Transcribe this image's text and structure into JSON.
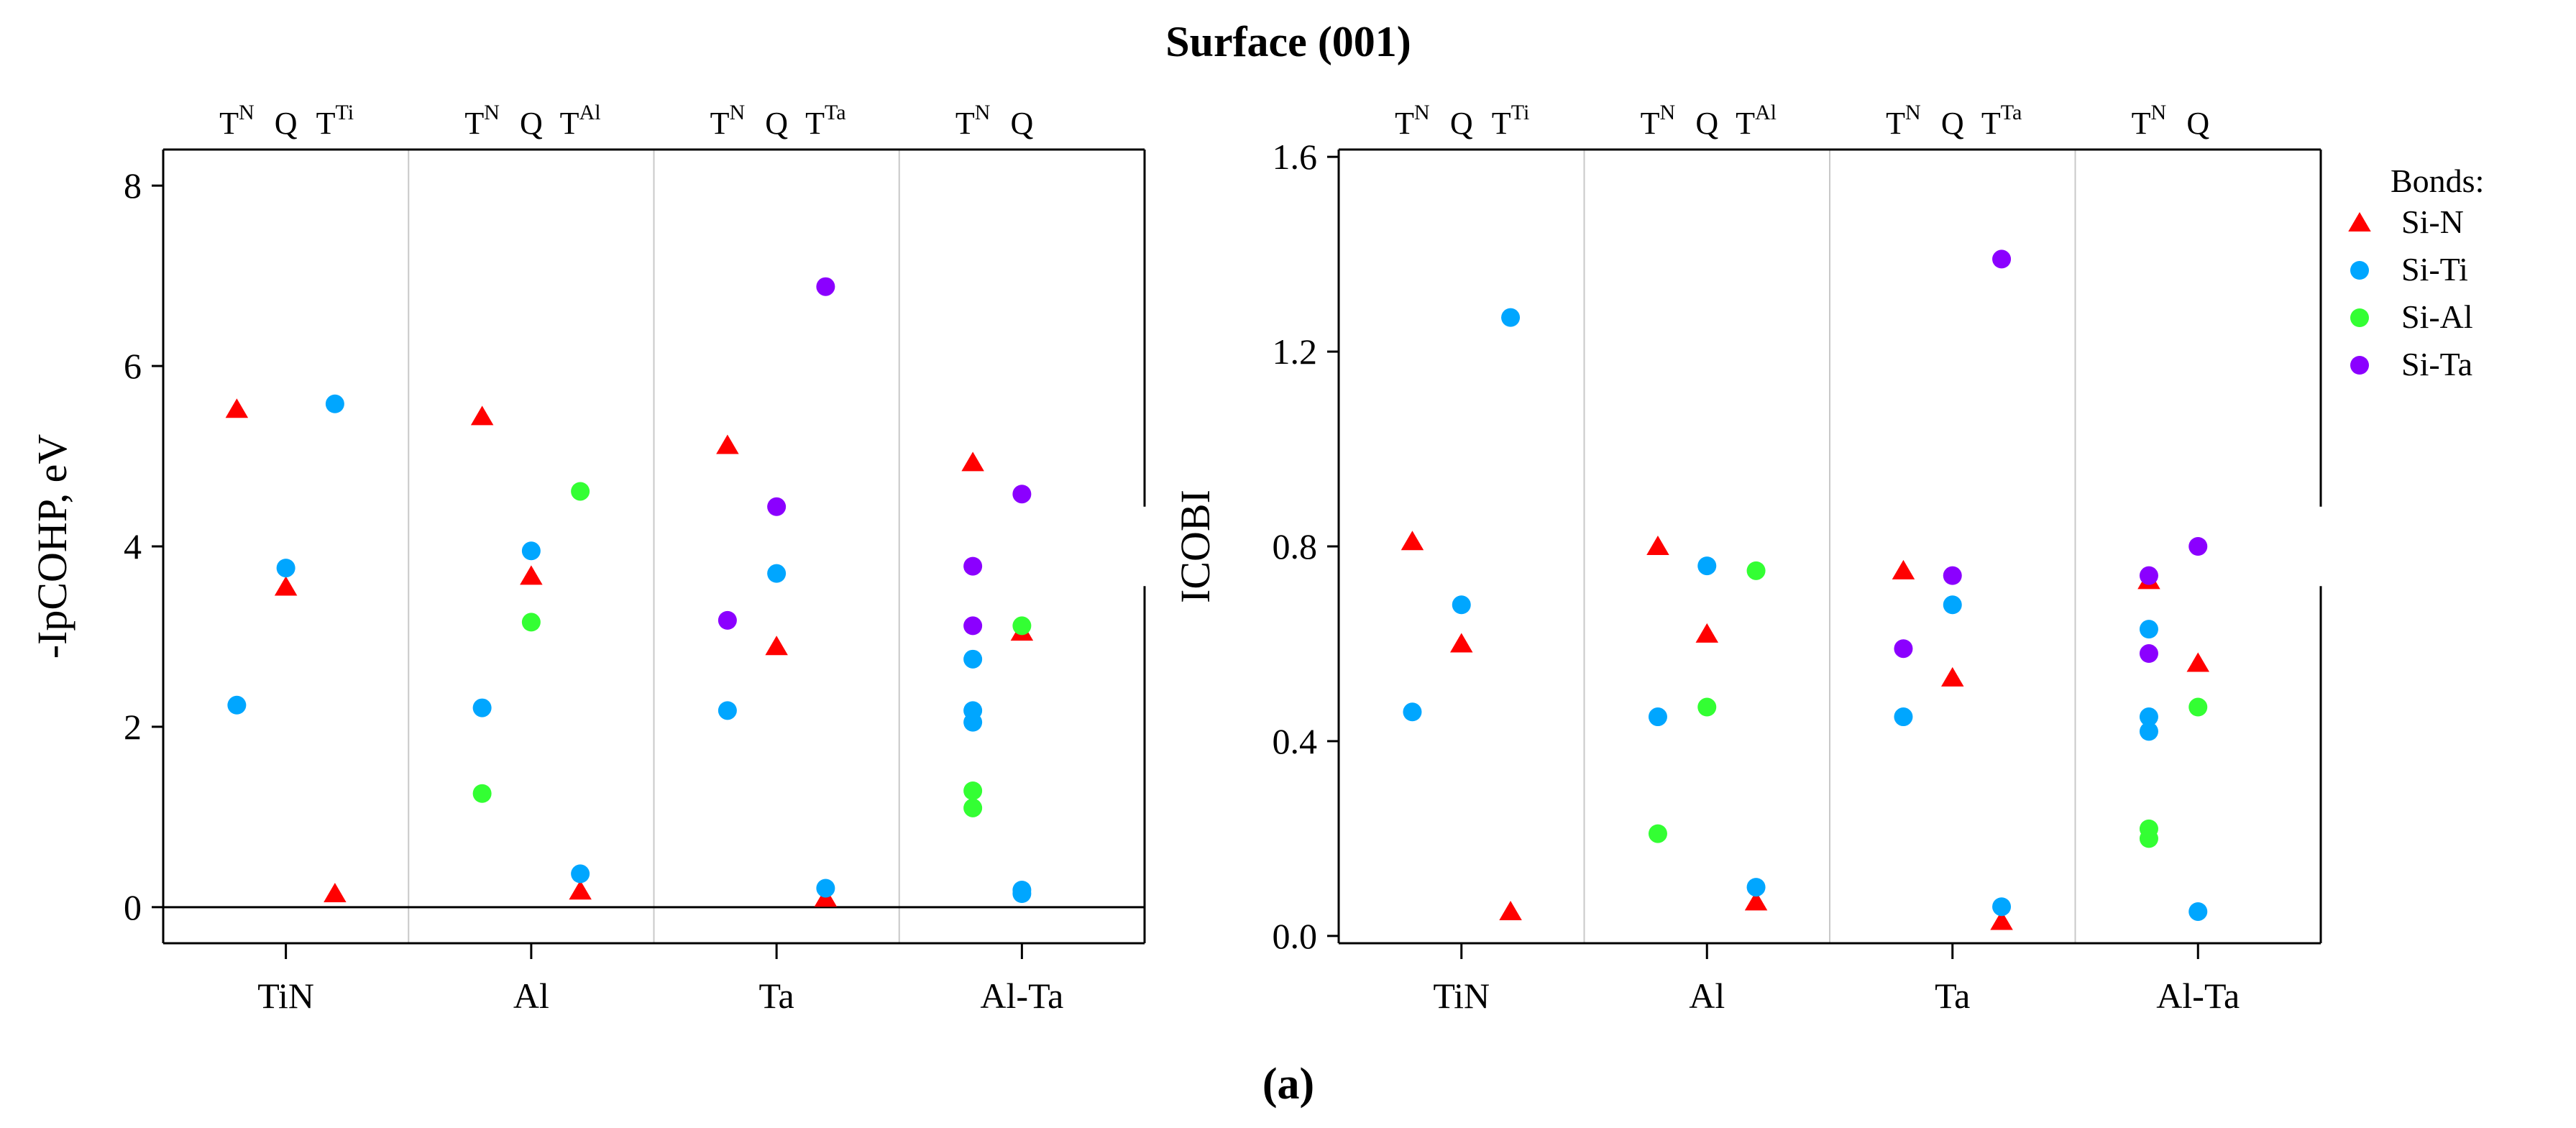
{
  "figure": {
    "title": "Surface (001)",
    "caption_label": "(a)"
  },
  "legend": {
    "title": "Bonds:",
    "placement": "right",
    "entries": [
      {
        "name": "Si-N",
        "marker": "triangle",
        "color": "#ff0000"
      },
      {
        "name": "Si-Ti",
        "marker": "circle",
        "color": "#00a6ff"
      },
      {
        "name": "Si-Al",
        "marker": "circle",
        "color": "#33ff33"
      },
      {
        "name": "Si-Ta",
        "marker": "circle",
        "color": "#8b00ff"
      }
    ]
  },
  "chart_data": [
    {
      "type": "scatter",
      "title": "",
      "ylabel": "-IpCOHP, eV",
      "xlabel": "",
      "ylim": [
        -0.4,
        8.4
      ],
      "yticks": [
        0,
        2,
        4,
        6,
        8
      ],
      "zero_line": true,
      "grid": false,
      "categories": [
        "TiN",
        "Al",
        "Ta",
        "Al-Ta"
      ],
      "top_labels": [
        [
          {
            "base": "T",
            "sup": "N"
          },
          {
            "base": "Q",
            "sup": ""
          },
          {
            "base": "T",
            "sup": "Ti"
          }
        ],
        [
          {
            "base": "T",
            "sup": "N"
          },
          {
            "base": "Q",
            "sup": ""
          },
          {
            "base": "T",
            "sup": "Al"
          }
        ],
        [
          {
            "base": "T",
            "sup": "N"
          },
          {
            "base": "Q",
            "sup": ""
          },
          {
            "base": "T",
            "sup": "Ta"
          }
        ],
        [
          {
            "base": "T",
            "sup": "N"
          },
          {
            "base": "Q",
            "sup": ""
          }
        ]
      ],
      "series": [
        {
          "name": "Si-N",
          "points": [
            {
              "group": 0,
              "pos": 0,
              "y": 5.52
            },
            {
              "group": 0,
              "pos": 1,
              "y": 3.55
            },
            {
              "group": 0,
              "pos": 2,
              "y": 0.15
            },
            {
              "group": 1,
              "pos": 0,
              "y": 5.44
            },
            {
              "group": 1,
              "pos": 1,
              "y": 3.67
            },
            {
              "group": 1,
              "pos": 2,
              "y": 0.18
            },
            {
              "group": 2,
              "pos": 0,
              "y": 5.12
            },
            {
              "group": 2,
              "pos": 1,
              "y": 2.89
            },
            {
              "group": 2,
              "pos": 2,
              "y": 0.1
            },
            {
              "group": 3,
              "pos": 0,
              "y": 4.93
            },
            {
              "group": 3,
              "pos": 1,
              "y": 3.05
            }
          ]
        },
        {
          "name": "Si-Ti",
          "points": [
            {
              "group": 0,
              "pos": 0,
              "y": 2.24
            },
            {
              "group": 0,
              "pos": 1,
              "y": 3.76
            },
            {
              "group": 0,
              "pos": 2,
              "y": 5.58
            },
            {
              "group": 1,
              "pos": 0,
              "y": 2.21
            },
            {
              "group": 1,
              "pos": 1,
              "y": 3.95
            },
            {
              "group": 1,
              "pos": 2,
              "y": 0.37
            },
            {
              "group": 2,
              "pos": 0,
              "y": 2.18
            },
            {
              "group": 2,
              "pos": 1,
              "y": 3.7
            },
            {
              "group": 2,
              "pos": 2,
              "y": 0.21
            },
            {
              "group": 3,
              "pos": 0,
              "y": 2.75
            },
            {
              "group": 3,
              "pos": 0,
              "y": 2.18
            },
            {
              "group": 3,
              "pos": 0,
              "y": 2.05
            },
            {
              "group": 3,
              "pos": 1,
              "y": 0.19
            },
            {
              "group": 3,
              "pos": 1,
              "y": 0.15
            }
          ]
        },
        {
          "name": "Si-Al",
          "points": [
            {
              "group": 1,
              "pos": 0,
              "y": 1.26
            },
            {
              "group": 1,
              "pos": 1,
              "y": 3.16
            },
            {
              "group": 1,
              "pos": 2,
              "y": 4.61
            },
            {
              "group": 3,
              "pos": 0,
              "y": 1.29
            },
            {
              "group": 3,
              "pos": 0,
              "y": 1.1
            },
            {
              "group": 3,
              "pos": 1,
              "y": 3.12
            }
          ]
        },
        {
          "name": "Si-Ta",
          "points": [
            {
              "group": 2,
              "pos": 0,
              "y": 3.18
            },
            {
              "group": 2,
              "pos": 1,
              "y": 4.44
            },
            {
              "group": 2,
              "pos": 2,
              "y": 6.88
            },
            {
              "group": 3,
              "pos": 0,
              "y": 3.78
            },
            {
              "group": 3,
              "pos": 0,
              "y": 3.12
            },
            {
              "group": 3,
              "pos": 1,
              "y": 4.58
            }
          ]
        }
      ]
    },
    {
      "type": "scatter",
      "title": "",
      "ylabel": "ICOBI",
      "xlabel": "",
      "ylim": [
        -0.015,
        1.615
      ],
      "yticks": [
        0.0,
        0.4,
        0.8,
        1.2,
        1.6
      ],
      "ytick_labels": [
        "0.0",
        "0.4",
        "0.8",
        "1.2",
        "1.6"
      ],
      "zero_line": false,
      "grid": false,
      "categories": [
        "TiN",
        "Al",
        "Ta",
        "Al-Ta"
      ],
      "top_labels": [
        [
          {
            "base": "T",
            "sup": "N"
          },
          {
            "base": "Q",
            "sup": ""
          },
          {
            "base": "T",
            "sup": "Ti"
          }
        ],
        [
          {
            "base": "T",
            "sup": "N"
          },
          {
            "base": "Q",
            "sup": ""
          },
          {
            "base": "T",
            "sup": "Al"
          }
        ],
        [
          {
            "base": "T",
            "sup": "N"
          },
          {
            "base": "Q",
            "sup": ""
          },
          {
            "base": "T",
            "sup": "Ta"
          }
        ],
        [
          {
            "base": "T",
            "sup": "N"
          },
          {
            "base": "Q",
            "sup": ""
          }
        ]
      ],
      "series": [
        {
          "name": "Si-N",
          "points": [
            {
              "group": 0,
              "pos": 0,
              "y": 0.81
            },
            {
              "group": 0,
              "pos": 1,
              "y": 0.6
            },
            {
              "group": 0,
              "pos": 2,
              "y": 0.05
            },
            {
              "group": 1,
              "pos": 0,
              "y": 0.8
            },
            {
              "group": 1,
              "pos": 1,
              "y": 0.62
            },
            {
              "group": 1,
              "pos": 2,
              "y": 0.07
            },
            {
              "group": 2,
              "pos": 0,
              "y": 0.75
            },
            {
              "group": 2,
              "pos": 1,
              "y": 0.53
            },
            {
              "group": 2,
              "pos": 2,
              "y": 0.03
            },
            {
              "group": 3,
              "pos": 0,
              "y": 0.73
            },
            {
              "group": 3,
              "pos": 1,
              "y": 0.56
            }
          ]
        },
        {
          "name": "Si-Ti",
          "points": [
            {
              "group": 0,
              "pos": 0,
              "y": 0.46
            },
            {
              "group": 0,
              "pos": 1,
              "y": 0.68
            },
            {
              "group": 0,
              "pos": 2,
              "y": 1.27
            },
            {
              "group": 1,
              "pos": 0,
              "y": 0.45
            },
            {
              "group": 1,
              "pos": 1,
              "y": 0.76
            },
            {
              "group": 1,
              "pos": 2,
              "y": 0.1
            },
            {
              "group": 2,
              "pos": 0,
              "y": 0.45
            },
            {
              "group": 2,
              "pos": 1,
              "y": 0.68
            },
            {
              "group": 2,
              "pos": 2,
              "y": 0.06
            },
            {
              "group": 3,
              "pos": 0,
              "y": 0.63
            },
            {
              "group": 3,
              "pos": 0,
              "y": 0.45
            },
            {
              "group": 3,
              "pos": 0,
              "y": 0.42
            },
            {
              "group": 3,
              "pos": 1,
              "y": 0.05
            }
          ]
        },
        {
          "name": "Si-Al",
          "points": [
            {
              "group": 1,
              "pos": 0,
              "y": 0.21
            },
            {
              "group": 1,
              "pos": 1,
              "y": 0.47
            },
            {
              "group": 1,
              "pos": 2,
              "y": 0.75
            },
            {
              "group": 3,
              "pos": 0,
              "y": 0.22
            },
            {
              "group": 3,
              "pos": 0,
              "y": 0.2
            },
            {
              "group": 3,
              "pos": 1,
              "y": 0.47
            }
          ]
        },
        {
          "name": "Si-Ta",
          "points": [
            {
              "group": 2,
              "pos": 0,
              "y": 0.59
            },
            {
              "group": 2,
              "pos": 1,
              "y": 0.74
            },
            {
              "group": 2,
              "pos": 2,
              "y": 1.39
            },
            {
              "group": 3,
              "pos": 0,
              "y": 0.74
            },
            {
              "group": 3,
              "pos": 0,
              "y": 0.58
            },
            {
              "group": 3,
              "pos": 1,
              "y": 0.8
            }
          ]
        }
      ]
    }
  ]
}
